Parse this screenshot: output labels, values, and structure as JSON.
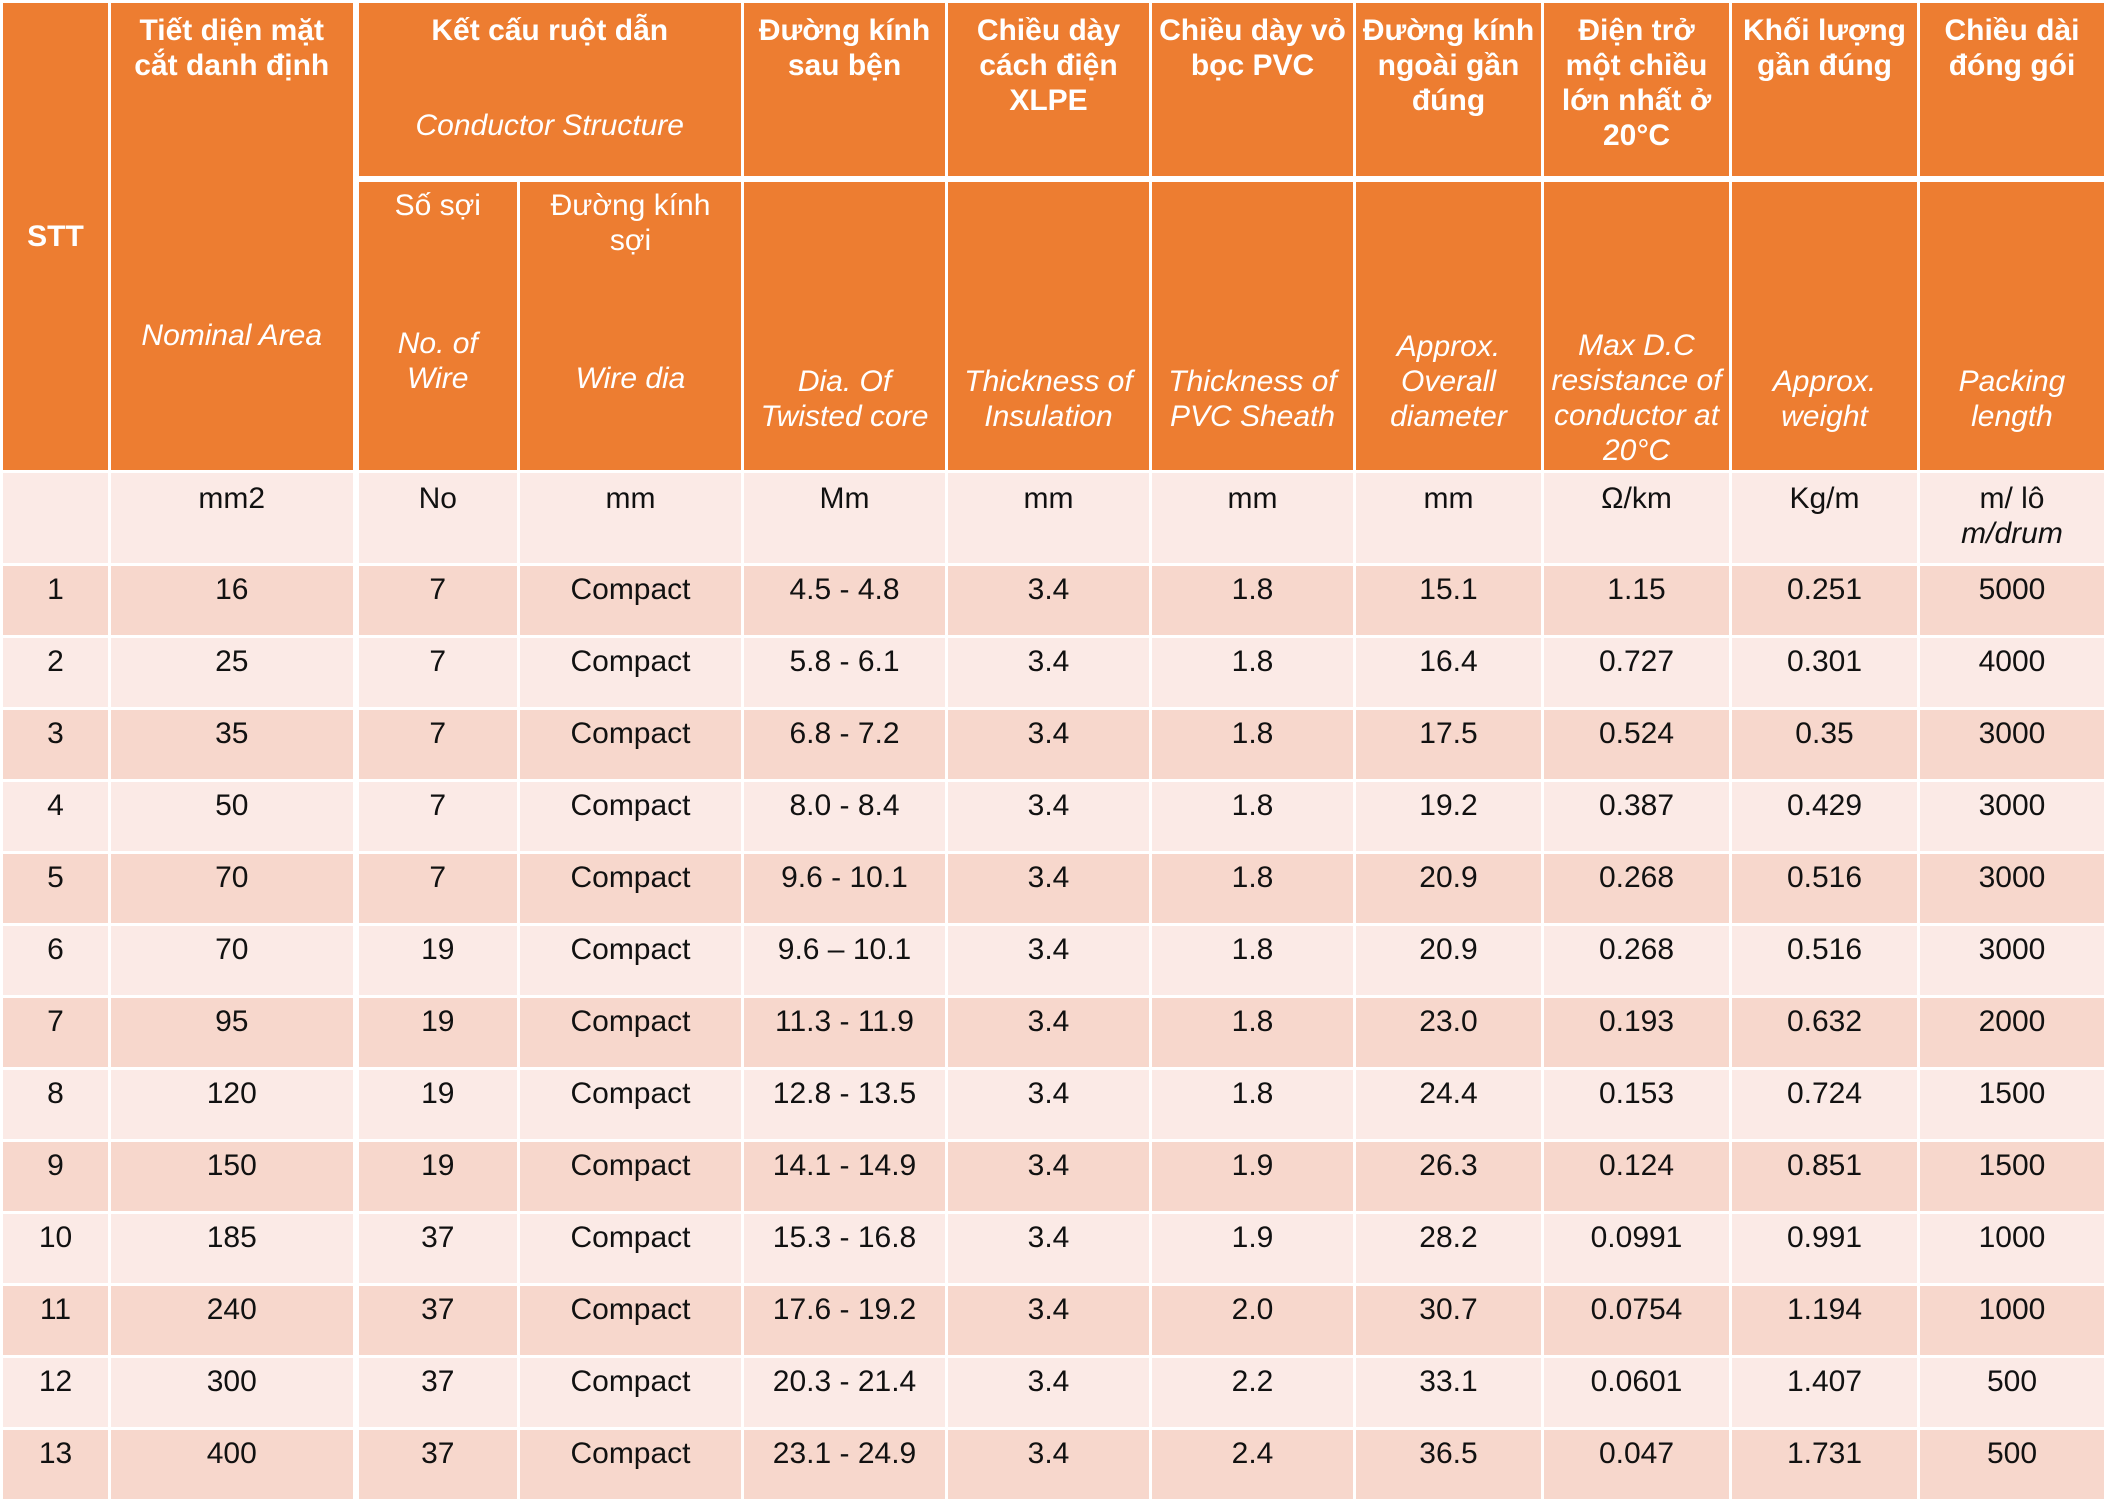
{
  "header": {
    "stt": "STT",
    "nominal_area": {
      "vi": "Tiết diện mặt cắt danh định",
      "en": "Nominal Area"
    },
    "conductor_structure": {
      "vi": "Kết cấu ruột dẫn",
      "en": "Conductor Structure"
    },
    "no_of_wire": {
      "vi": "Số sợi",
      "en": "No. of Wire"
    },
    "wire_dia": {
      "vi": "Đường kính sợi",
      "en": "Wire dia"
    },
    "twisted_core": {
      "vi": "Đường kính sau bện",
      "en": "Dia. Of Twisted core"
    },
    "insulation": {
      "vi": "Chiều dày cách điện XLPE",
      "en": "Thickness of Insulation"
    },
    "sheath": {
      "vi": "Chiều dày vỏ bọc PVC",
      "en": "Thickness of PVC Sheath"
    },
    "overall_dia": {
      "vi": "Đường kính ngoài gần đúng",
      "en": "Approx. Overall diameter"
    },
    "resistance": {
      "vi": "Điện trở một chiều lớn nhất ở 20°C",
      "en": "Max D.C resistance of conductor at 20°C"
    },
    "weight": {
      "vi": "Khối lượng gần đúng",
      "en": "Approx. weight"
    },
    "packing": {
      "vi": "Chiều dài đóng gói",
      "en": "Packing length"
    }
  },
  "units": {
    "stt": "",
    "nominal_area": "mm2",
    "no_of_wire": "No",
    "wire_dia": "mm",
    "twisted_core": "Mm",
    "insulation": "mm",
    "sheath": "mm",
    "overall_dia": "mm",
    "resistance": "Ω/km",
    "weight": "Kg/m",
    "packing": "m/ lô",
    "packing_en": "m/drum"
  },
  "rows": [
    {
      "stt": "1",
      "area": "16",
      "wires": "7",
      "wire_dia": "Compact",
      "core": "4.5 - 4.8",
      "ins": "3.4",
      "sheath": "1.8",
      "overall": "15.1",
      "res": "1.15",
      "weight": "0.251",
      "pack": "5000"
    },
    {
      "stt": "2",
      "area": "25",
      "wires": "7",
      "wire_dia": "Compact",
      "core": "5.8 - 6.1",
      "ins": "3.4",
      "sheath": "1.8",
      "overall": "16.4",
      "res": "0.727",
      "weight": "0.301",
      "pack": "4000"
    },
    {
      "stt": "3",
      "area": "35",
      "wires": "7",
      "wire_dia": "Compact",
      "core": "6.8 - 7.2",
      "ins": "3.4",
      "sheath": "1.8",
      "overall": "17.5",
      "res": "0.524",
      "weight": "0.35",
      "pack": "3000"
    },
    {
      "stt": "4",
      "area": "50",
      "wires": "7",
      "wire_dia": "Compact",
      "core": "8.0 - 8.4",
      "ins": "3.4",
      "sheath": "1.8",
      "overall": "19.2",
      "res": "0.387",
      "weight": "0.429",
      "pack": "3000"
    },
    {
      "stt": "5",
      "area": "70",
      "wires": "7",
      "wire_dia": "Compact",
      "core": "9.6 - 10.1",
      "ins": "3.4",
      "sheath": "1.8",
      "overall": "20.9",
      "res": "0.268",
      "weight": "0.516",
      "pack": "3000"
    },
    {
      "stt": "6",
      "area": "70",
      "wires": "19",
      "wire_dia": "Compact",
      "core": "9.6 – 10.1",
      "ins": "3.4",
      "sheath": "1.8",
      "overall": "20.9",
      "res": "0.268",
      "weight": "0.516",
      "pack": "3000"
    },
    {
      "stt": "7",
      "area": "95",
      "wires": "19",
      "wire_dia": "Compact",
      "core": "11.3 - 11.9",
      "ins": "3.4",
      "sheath": "1.8",
      "overall": "23.0",
      "res": "0.193",
      "weight": "0.632",
      "pack": "2000"
    },
    {
      "stt": "8",
      "area": "120",
      "wires": "19",
      "wire_dia": "Compact",
      "core": "12.8 - 13.5",
      "ins": "3.4",
      "sheath": "1.8",
      "overall": "24.4",
      "res": "0.153",
      "weight": "0.724",
      "pack": "1500"
    },
    {
      "stt": "9",
      "area": "150",
      "wires": "19",
      "wire_dia": "Compact",
      "core": "14.1 - 14.9",
      "ins": "3.4",
      "sheath": "1.9",
      "overall": "26.3",
      "res": "0.124",
      "weight": "0.851",
      "pack": "1500"
    },
    {
      "stt": "10",
      "area": "185",
      "wires": "37",
      "wire_dia": "Compact",
      "core": "15.3 - 16.8",
      "ins": "3.4",
      "sheath": "1.9",
      "overall": "28.2",
      "res": "0.0991",
      "weight": "0.991",
      "pack": "1000"
    },
    {
      "stt": "11",
      "area": "240",
      "wires": "37",
      "wire_dia": "Compact",
      "core": "17.6 - 19.2",
      "ins": "3.4",
      "sheath": "2.0",
      "overall": "30.7",
      "res": "0.0754",
      "weight": "1.194",
      "pack": "1000"
    },
    {
      "stt": "12",
      "area": "300",
      "wires": "37",
      "wire_dia": "Compact",
      "core": "20.3 - 21.4",
      "ins": "3.4",
      "sheath": "2.2",
      "overall": "33.1",
      "res": "0.0601",
      "weight": "1.407",
      "pack": "500"
    },
    {
      "stt": "13",
      "area": "400",
      "wires": "37",
      "wire_dia": "Compact",
      "core": "23.1 - 24.9",
      "ins": "3.4",
      "sheath": "2.4",
      "overall": "36.5",
      "res": "0.047",
      "weight": "1.731",
      "pack": "500"
    }
  ],
  "colors": {
    "header_bg": "#ED7D31",
    "row_dark": "#F7D7CC",
    "row_light": "#FBEAE6"
  }
}
